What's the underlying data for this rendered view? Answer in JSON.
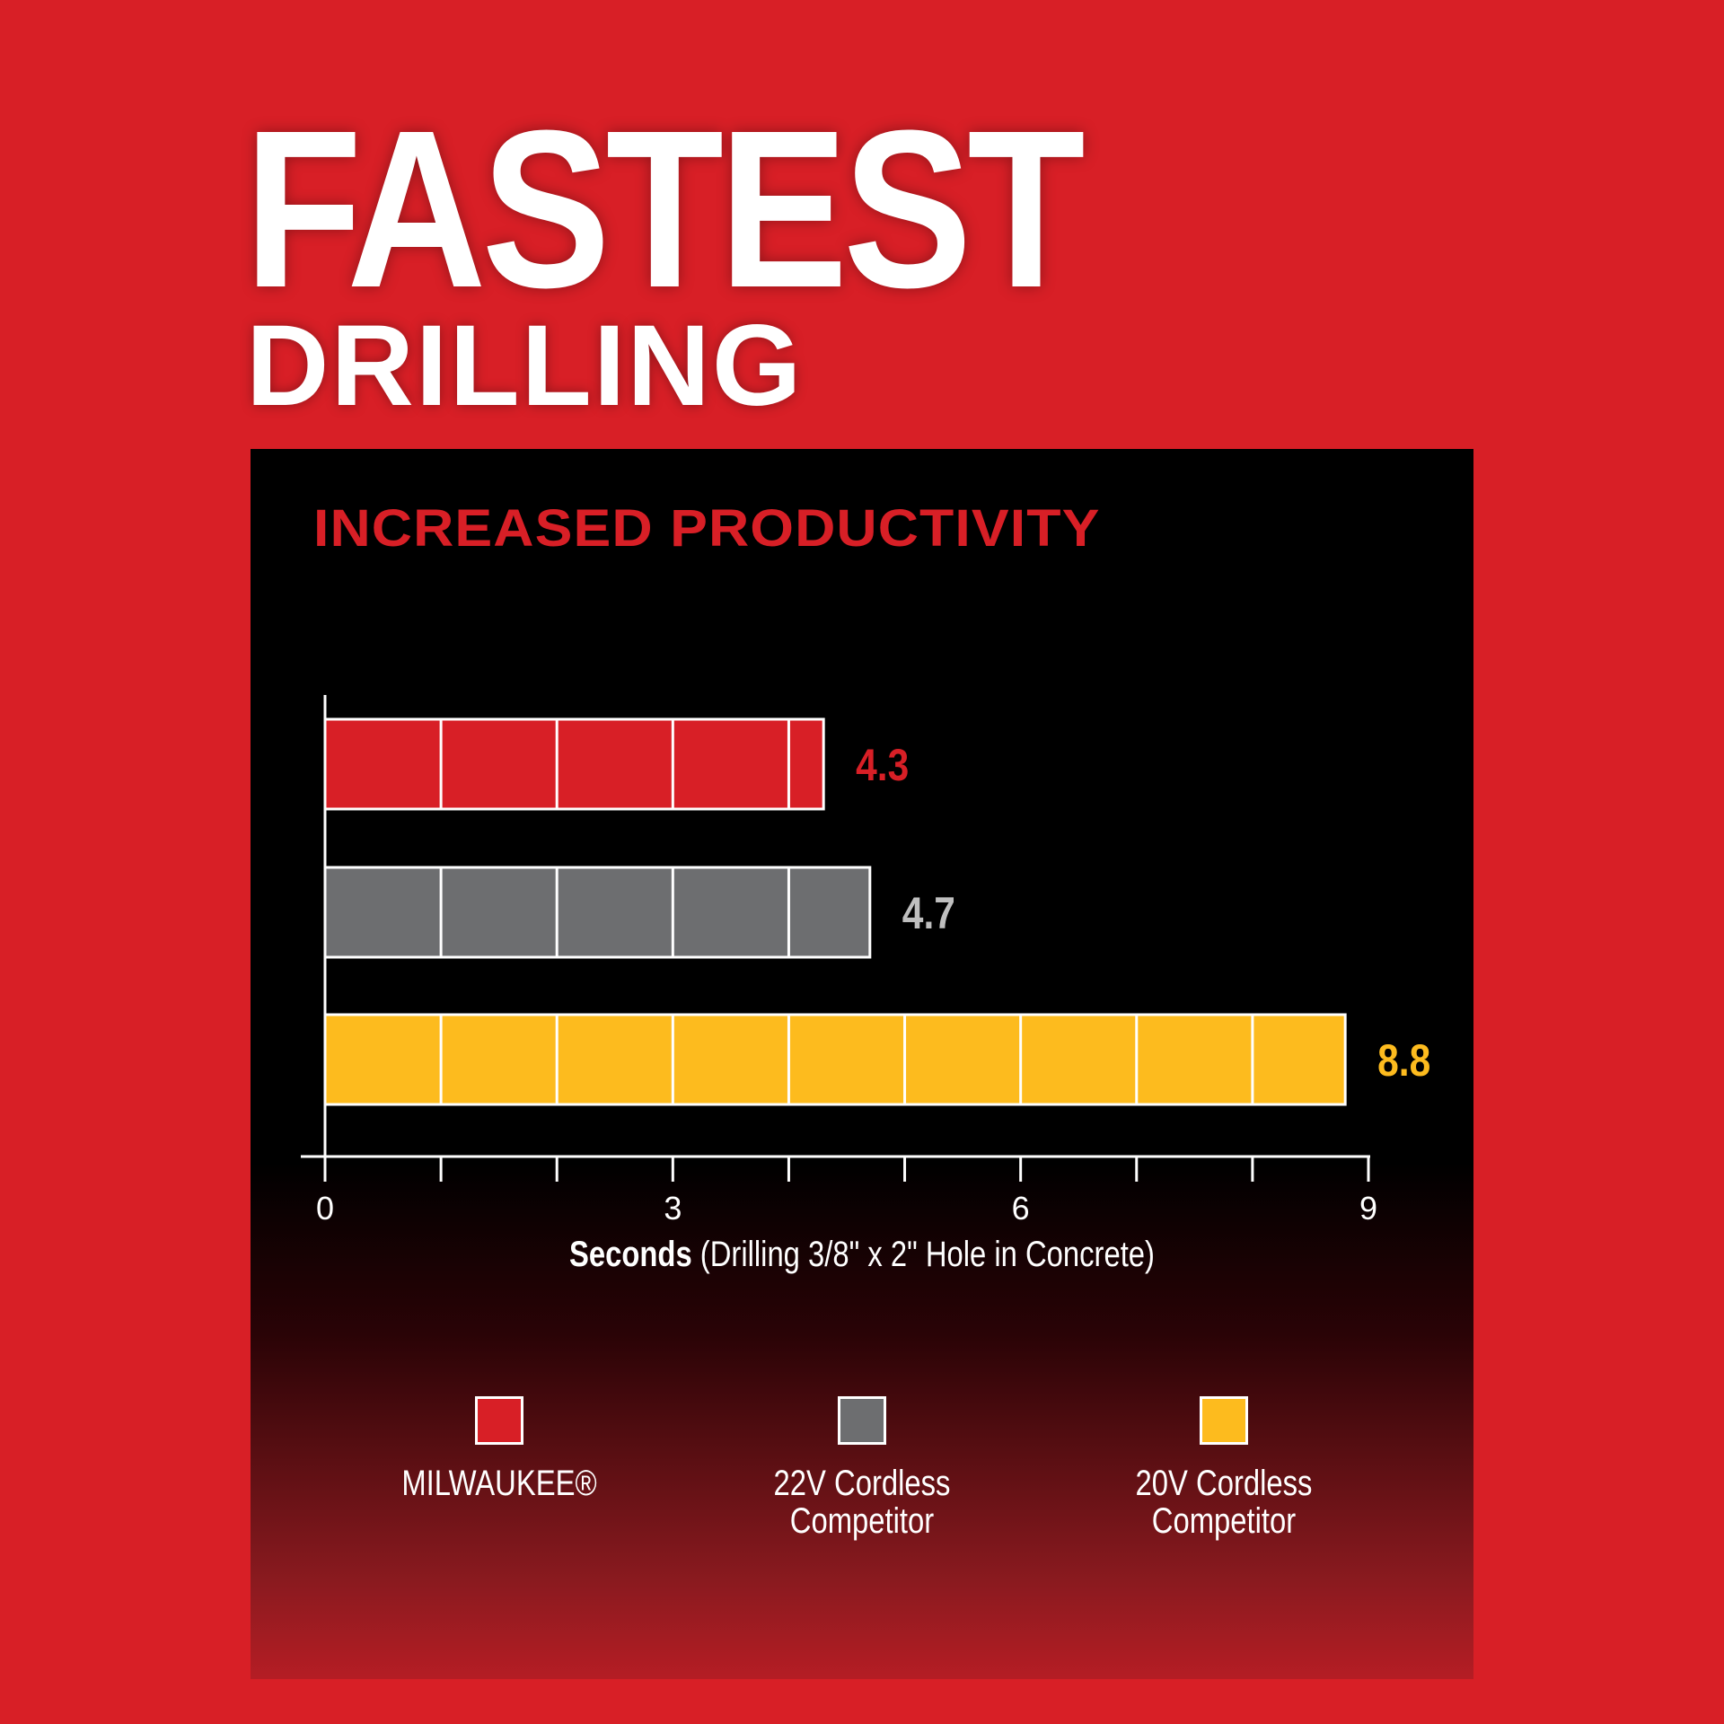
{
  "header": {
    "title": "FASTEST",
    "subtitle": "DRILLING"
  },
  "chart_data": {
    "type": "bar",
    "orientation": "horizontal",
    "title": "INCREASED PRODUCTIVITY",
    "xlabel_bold": "Seconds",
    "xlabel_rest": " (Drilling 3/8\" x 2\" Hole in Concrete)",
    "xlim": [
      0,
      9
    ],
    "xticks": [
      0,
      3,
      6,
      9
    ],
    "grid": false,
    "legend_placement": "bottom",
    "categories": [
      "MILWAUKEE®",
      "22V Cordless Competitor",
      "20V Cordless Competitor"
    ],
    "values": [
      4.3,
      4.7,
      8.8
    ],
    "value_labels": [
      "4.3",
      "4.7",
      "8.8"
    ],
    "colors": [
      "#d81f26",
      "#6d6e70",
      "#fdbb1e"
    ],
    "label_colors": [
      "#d81f26",
      "#bfbfbf",
      "#fdbb1e"
    ]
  },
  "legend": [
    {
      "label": "MILWAUKEE®",
      "color": "#d81f26"
    },
    {
      "label": "22V Cordless\nCompetitor",
      "color": "#6d6e70"
    },
    {
      "label": "20V Cordless\nCompetitor",
      "color": "#fdbb1e"
    }
  ]
}
